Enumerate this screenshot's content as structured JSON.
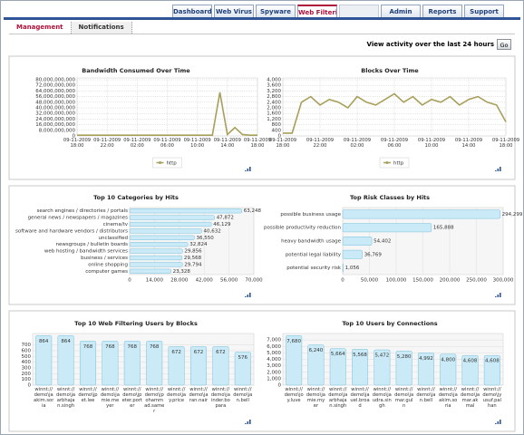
{
  "tabs": [
    "Dashboard",
    "Web Virus",
    "Spyware",
    "Web Filtering",
    "Admin",
    "Reports",
    "Support"
  ],
  "active_tab": "Web Filtering",
  "subtabs": [
    "Management",
    "Notifications"
  ],
  "activity_label": "View activity over the last 24 hours",
  "go_button": "Go",
  "chart_data": [
    {
      "type": "line",
      "title": "Bandwidth Consumed Over Time",
      "x": [
        "09-11-2009 18:00",
        null,
        null,
        null,
        "09-11-2009 22:00",
        null,
        null,
        null,
        "09-11-2009 02:00",
        null,
        null,
        null,
        "09-11-2009 06:00",
        null,
        null,
        null,
        "09-11-2009 10:00",
        null,
        null,
        null,
        "09-11-2009 14:00",
        null,
        null,
        null,
        "09-11-2009 18:00"
      ],
      "series": [
        {
          "name": "http",
          "color": "#a89f5a",
          "values": [
            1000000000,
            1000000000,
            1000000000,
            1000000000,
            1000000000,
            1000000000,
            1000000000,
            1000000000,
            1000000000,
            1000000000,
            1000000000,
            1000000000,
            1000000000,
            1000000000,
            1000000000,
            1000000000,
            1000000000,
            1000000000,
            1000000000,
            62000000000,
            2000000000,
            12000000000,
            2000000000,
            1000000000,
            1000000000
          ]
        }
      ],
      "ylim": [
        0,
        80000000000
      ],
      "yticks": [
        0,
        {
          "value": 8000000000,
          "label": "8,000,000,000"
        },
        {
          "value": 16000000000,
          "label": "16,000,000,000"
        },
        {
          "value": 24000000000,
          "label": "24,000,000,000"
        },
        {
          "value": 32000000000,
          "label": "32,000,000,000"
        },
        {
          "value": 40000000000,
          "label": "40,000,000,000"
        },
        {
          "value": 48000000000,
          "label": "48,000,000,000"
        },
        {
          "value": 56000000000,
          "label": "56,000,000,000"
        },
        {
          "value": 64000000000,
          "label": "64,000,000,000"
        },
        {
          "value": 72000000000,
          "label": "72,000,000,000"
        },
        {
          "value": 80000000000,
          "label": "80,000,000,000"
        }
      ],
      "grid": true
    },
    {
      "type": "line",
      "title": "Blocks Over Time",
      "x": [
        "09-11-2009 18:00",
        null,
        null,
        null,
        "09-11-2009 22:00",
        null,
        null,
        null,
        "09-11-2009 02:00",
        null,
        null,
        null,
        "09-11-2009 06:00",
        null,
        null,
        null,
        "09-11-2009 10:00",
        null,
        null,
        null,
        "09-11-2009 14:00",
        null,
        null,
        null,
        "09-11-2009 18:00"
      ],
      "series": [
        {
          "name": "http",
          "color": "#a89f5a",
          "values": [
            200,
            200,
            2400,
            2800,
            2200,
            2600,
            2400,
            2000,
            2800,
            2400,
            2200,
            2600,
            3000,
            2400,
            2800,
            2200,
            2600,
            2400,
            2800,
            2200,
            2600,
            2800,
            2400,
            2200,
            1000
          ]
        }
      ],
      "ylim": [
        0,
        4000
      ],
      "yticks": [
        0,
        400,
        800,
        {
          "value": 1200,
          "label": "1,200"
        },
        {
          "value": 1600,
          "label": "1,600"
        },
        {
          "value": 2000,
          "label": "2,000"
        },
        {
          "value": 2400,
          "label": "2,400"
        },
        {
          "value": 2800,
          "label": "2,800"
        },
        {
          "value": 3200,
          "label": "3,200"
        },
        {
          "value": 3600,
          "label": "3,600"
        },
        {
          "value": 4000,
          "label": "4,000"
        }
      ],
      "grid": true
    },
    {
      "type": "hbar",
      "title": "Top 10 Categories by Hits",
      "color": "#c9eaf6",
      "categories": [
        "search engines / directories / portals",
        "general news / newspapers / magazines",
        "cinema/tv",
        "software and hardware vendors / distributors",
        "unclassified",
        "newsgroups / bulletin boards",
        "web hosting / bandwidth services",
        "business / services",
        "online shopping",
        "computer games"
      ],
      "values": [
        63248,
        47872,
        46129,
        40632,
        36550,
        32824,
        29856,
        29568,
        29794,
        23328
      ],
      "value_labels": [
        "63,248",
        "47,872",
        "46,129",
        "40,632",
        "36,550",
        "32,824",
        "29,856",
        "29,568",
        "29,794",
        "23,328"
      ],
      "xlim": [
        0,
        70000
      ],
      "xticks": [
        0,
        {
          "value": 14000,
          "label": "14,000"
        },
        {
          "value": 28000,
          "label": "28,000"
        },
        {
          "value": 42000,
          "label": "42,000"
        },
        {
          "value": 56000,
          "label": "56,000"
        },
        {
          "value": 70000,
          "label": "70,000"
        }
      ],
      "grid": true
    },
    {
      "type": "hbar",
      "title": "Top Risk Classes by Hits",
      "color": "#c9eaf6",
      "categories": [
        "possible business usage",
        "possible productivity reduction",
        "heavy bandwidth usage",
        "potential legal liability",
        "potential security risk"
      ],
      "values": [
        294299,
        165888,
        54402,
        36769,
        1056
      ],
      "value_labels": [
        "294,299",
        "165,888",
        "54,402",
        "36,769",
        "1,056"
      ],
      "xlim": [
        0,
        300000
      ],
      "xticks": [
        0,
        {
          "value": 50000,
          "label": "50,000"
        },
        {
          "value": 100000,
          "label": "100,000"
        },
        {
          "value": 150000,
          "label": "150,000"
        },
        {
          "value": 200000,
          "label": "200,000"
        },
        {
          "value": 250000,
          "label": "250,000"
        },
        {
          "value": 300000,
          "label": "300,000"
        }
      ],
      "grid": true
    },
    {
      "type": "vbar",
      "title": "Top 10 Web Filtering Users by Blocks",
      "color": "#c9eaf6",
      "categories": [
        "winnt://demo\\jaakim.soria",
        "winnt://demo\\jaarbhajan.singh",
        "winnt://demo\\jpet.lee",
        "winnt://demo\\jamie.meyer",
        "winnt://demo\\jpeter.porter",
        "winnt://demo\\jpohammad.samer",
        "winnt://demo\\jay.price",
        "winnt://demo\\jaran.nair",
        "winnt://demo\\jainder.bopara",
        "winnt://demo\\jan.bell"
      ],
      "values": [
        864,
        864,
        768,
        768,
        768,
        768,
        672,
        672,
        672,
        576
      ],
      "ylim": [
        0,
        900
      ],
      "yticks": [
        0,
        100,
        200,
        300,
        400,
        500,
        600,
        700
      ],
      "grid": true
    },
    {
      "type": "vbar",
      "title": "Top 10 Users by Connections",
      "color": "#c9eaf6",
      "categories": [
        "winnt://demo\\joy.luve",
        "winnt://demo\\jamie.myer",
        "winnt://demo\\jaarbhajan.singh",
        "winnt://demo\\jauel.broad",
        "winnt://demo\\jaudra.singh",
        "winnt://demo\\jamar.guln",
        "winnt://demo\\jan.bell",
        "winnt://demo\\jaakim.soria",
        "winnt://demo\\jamar.akmal",
        "winnt://demo\\jyusuf.palhan"
      ],
      "values": [
        7680,
        6240,
        5664,
        5568,
        5472,
        5280,
        4992,
        4800,
        4608,
        4608
      ],
      "value_labels": [
        "7,680",
        "6,240",
        "5,664",
        "5,568",
        "5,472",
        "5,280",
        "4,992",
        "4,800",
        "4,608",
        "4,608"
      ],
      "ylim": [
        0,
        8000
      ],
      "yticks": [
        0,
        {
          "value": 1000,
          "label": "1,000"
        },
        {
          "value": 2000,
          "label": "2,000"
        },
        {
          "value": 3000,
          "label": "3,000"
        },
        {
          "value": 4000,
          "label": "4,000"
        },
        {
          "value": 5000,
          "label": "5,000"
        },
        {
          "value": 6000,
          "label": "6,000"
        },
        {
          "value": 7000,
          "label": "7,000"
        }
      ],
      "grid": true
    }
  ]
}
